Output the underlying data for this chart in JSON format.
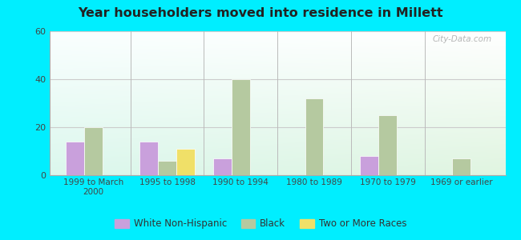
{
  "title": "Year householders moved into residence in Millett",
  "categories": [
    "1999 to March\n2000",
    "1995 to 1998",
    "1990 to 1994",
    "1980 to 1989",
    "1970 to 1979",
    "1969 or earlier"
  ],
  "series": {
    "White Non-Hispanic": [
      14,
      14,
      7,
      0,
      8,
      0
    ],
    "Black": [
      20,
      6,
      40,
      32,
      25,
      7
    ],
    "Two or More Races": [
      0,
      11,
      0,
      0,
      0,
      0
    ]
  },
  "colors": {
    "White Non-Hispanic": "#c9a0dc",
    "Black": "#b5c9a0",
    "Two or More Races": "#f0e068"
  },
  "ylim": [
    0,
    60
  ],
  "yticks": [
    0,
    20,
    40,
    60
  ],
  "background_color": "#00eeff",
  "bar_width": 0.25,
  "watermark": "City-Data.com"
}
